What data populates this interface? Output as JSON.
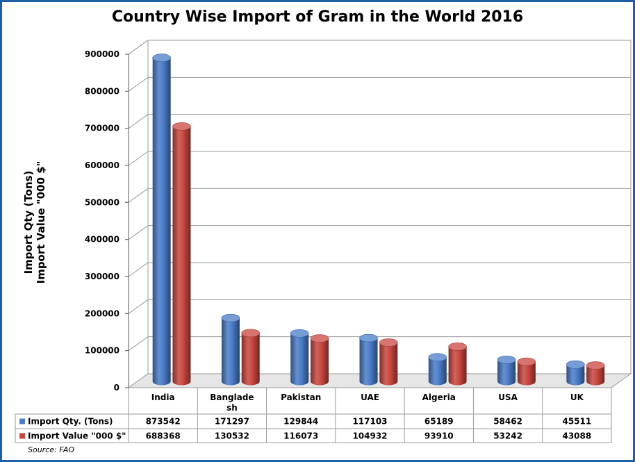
{
  "chart_data": {
    "type": "bar",
    "title": "Country Wise Import of Gram in the World 2016",
    "ylabel_lines": [
      "Import Qty (Tons)",
      "Import Value \"000 $\""
    ],
    "categories": [
      "India",
      "Banglade sh",
      "Pakistan",
      "UAE",
      "Algeria",
      "USA",
      "UK"
    ],
    "series": [
      {
        "name": "Import Qty. (Tons)",
        "values": [
          873542,
          171297,
          129844,
          117103,
          65189,
          58462,
          45511
        ],
        "color": "#4a7cc8",
        "display": [
          "873542",
          "171297",
          "129844",
          "117103",
          "65189",
          "58462",
          "45511"
        ]
      },
      {
        "name": "Import Value \"000 $\"",
        "values": [
          688368,
          130532,
          116073,
          104932,
          93910,
          53242,
          43088
        ],
        "color": "#c9463f",
        "display": [
          "688368",
          "130532",
          "116073",
          "104932",
          "93910",
          "53242",
          "43088"
        ]
      }
    ],
    "ylim": [
      0,
      900000
    ],
    "yticks": [
      "0",
      "100000",
      "200000",
      "300000",
      "400000",
      "500000",
      "600000",
      "700000",
      "800000",
      "900000"
    ],
    "grid": true,
    "legend": "data-table"
  },
  "source": "Source: FAO"
}
